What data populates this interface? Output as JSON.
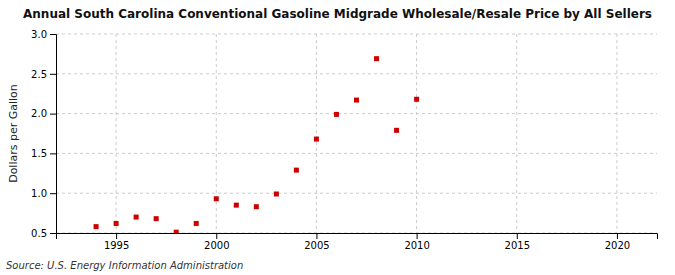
{
  "chart_data": {
    "type": "scatter",
    "title": "Annual South Carolina Conventional Gasoline Midgrade Wholesale/Resale Price by All Sellers",
    "y_label": "Dollars per Gallon",
    "annotations": [
      "Source: U.S. Energy Information Administration"
    ],
    "x": [
      1994,
      1995,
      1996,
      1997,
      1998,
      1999,
      2000,
      2001,
      2002,
      2003,
      2004,
      2005,
      2006,
      2007,
      2008,
      2009,
      2010
    ],
    "values": [
      0.58,
      0.62,
      0.7,
      0.68,
      0.51,
      0.62,
      0.93,
      0.85,
      0.83,
      0.99,
      1.29,
      1.68,
      1.99,
      2.17,
      2.69,
      1.79,
      2.18
    ],
    "color": "#cc0000",
    "marker": "square",
    "xlim": [
      1992,
      2022
    ],
    "ylim": [
      0.5,
      3.0
    ],
    "xticks": [
      1995,
      2000,
      2005,
      2010,
      2015,
      2020
    ],
    "yticks": [
      0.5,
      {
        "value": 1.0,
        "label": "1.0"
      },
      1.5,
      {
        "value": 2.0,
        "label": "2.0"
      },
      2.5,
      {
        "value": 3.0,
        "label": "3.0"
      }
    ],
    "grid": true
  }
}
